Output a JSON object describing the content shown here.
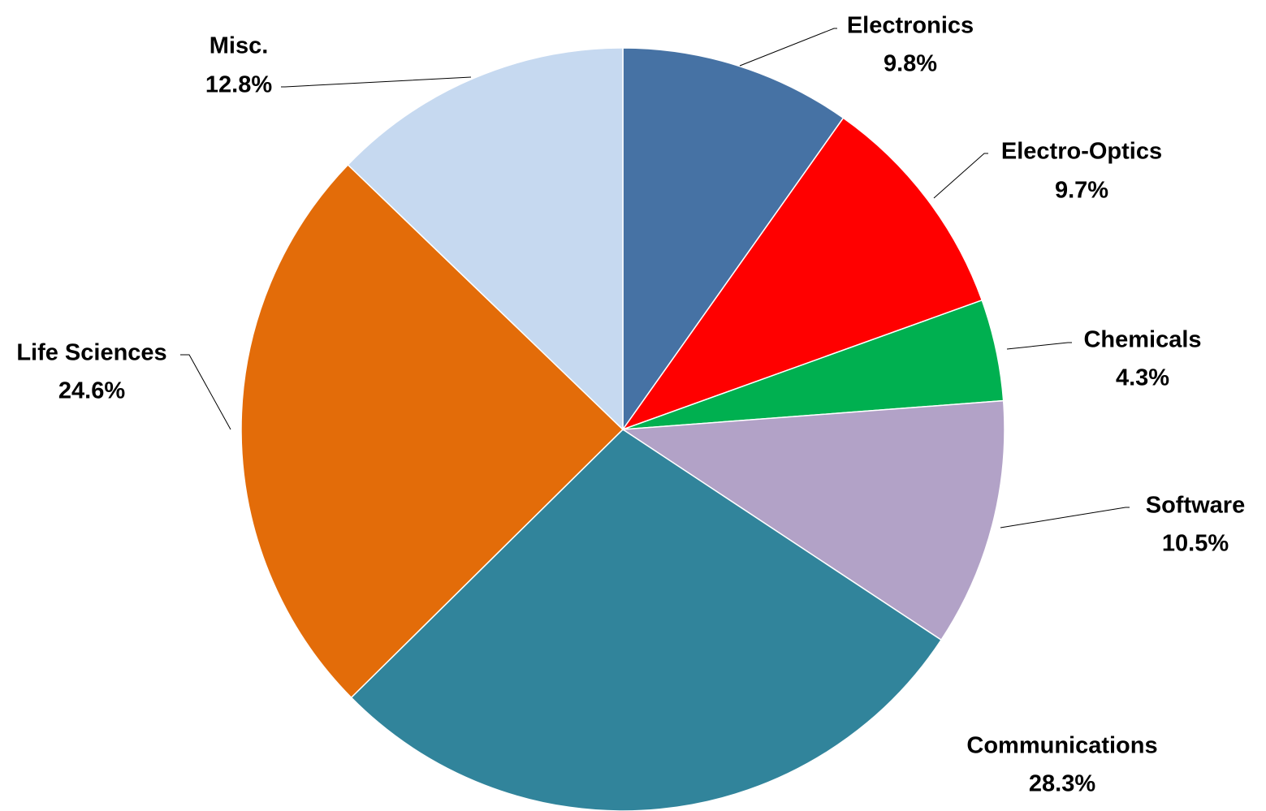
{
  "chart_data": {
    "type": "pie",
    "title": "",
    "start_angle": "12 o'clock",
    "direction": "clockwise",
    "slices": [
      {
        "label": "Electronics",
        "value": 9.8,
        "value_label": "9.8%",
        "color": "#4672A4"
      },
      {
        "label": "Electro-Optics",
        "value": 9.7,
        "value_label": "9.7%",
        "color": "#FF0000"
      },
      {
        "label": "Chemicals",
        "value": 4.3,
        "value_label": "4.3%",
        "color": "#00B050"
      },
      {
        "label": "Software",
        "value": 10.5,
        "value_label": "10.5%",
        "color": "#B2A2C7"
      },
      {
        "label": "Communications",
        "value": 28.3,
        "value_label": "28.3%",
        "color": "#31849B"
      },
      {
        "label": "Life Sciences",
        "value": 24.6,
        "value_label": "24.6%",
        "color": "#E36C09"
      },
      {
        "label": "Misc.",
        "value": 12.8,
        "value_label": "12.8%",
        "color": "#C6D9F0"
      }
    ],
    "legend": "none",
    "data_labels": "outside with leader lines"
  }
}
